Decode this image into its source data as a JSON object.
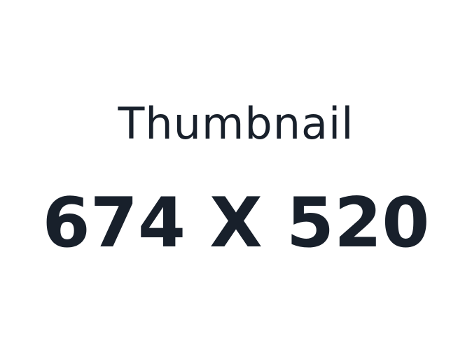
{
  "placeholder": {
    "title": "Thumbnail",
    "size_label": "674 X 520",
    "text_color": "#18202b",
    "background_color": "#ffffff"
  }
}
